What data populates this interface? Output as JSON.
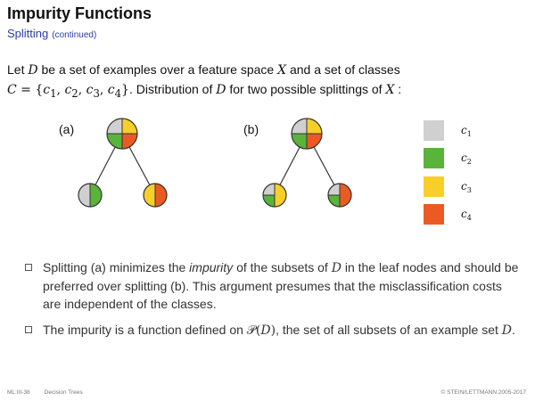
{
  "header": {
    "title": "Impurity Functions",
    "subtitle": "Splitting",
    "subtitle_note": "(continued)"
  },
  "intro": {
    "line1_a": "Let ",
    "D": "D",
    "line1_b": " be a set of examples over a feature space ",
    "X": "X",
    "line1_c": " and a set of classes",
    "C": "C",
    "set_eq": " = {",
    "c1": "c",
    "sub1": "1",
    "comma": ", ",
    "sub2": "2",
    "sub3": "3",
    "sub4": "4",
    "set_close": "}",
    "line2_b": ". Distribution of ",
    "line2_c": " for two possible splittings of ",
    "line2_d": " :"
  },
  "diagram": {
    "label_a": "(a)",
    "label_b": "(b)",
    "legend": [
      {
        "name": "c",
        "sub": "1",
        "color": "#d0d0d0"
      },
      {
        "name": "c",
        "sub": "2",
        "color": "#5ab33a"
      },
      {
        "name": "c",
        "sub": "3",
        "color": "#f8cf2a"
      },
      {
        "name": "c",
        "sub": "4",
        "color": "#ec5a24"
      }
    ]
  },
  "bullets": {
    "b1_a": "Splitting (a) minimizes the ",
    "b1_em": "impurity",
    "b1_b": " of the subsets of ",
    "b1_D": "D",
    "b1_c": " in the leaf nodes and should be preferred over splitting (b). This argument presumes that the misclassification costs are independent of the classes.",
    "b2_a": "The impurity is a function defined on ",
    "b2_P": "𝒫",
    "b2_paren_open": "(",
    "b2_D": "D",
    "b2_paren_close": ")",
    "b2_b": ", the set of all subsets of an example set ",
    "b2_D2": "D",
    "b2_c": "."
  },
  "footer": {
    "course": "ML:III-38",
    "topic": "Decision Trees",
    "copyright": "© STEIN/LETTMANN 2005-2017"
  }
}
